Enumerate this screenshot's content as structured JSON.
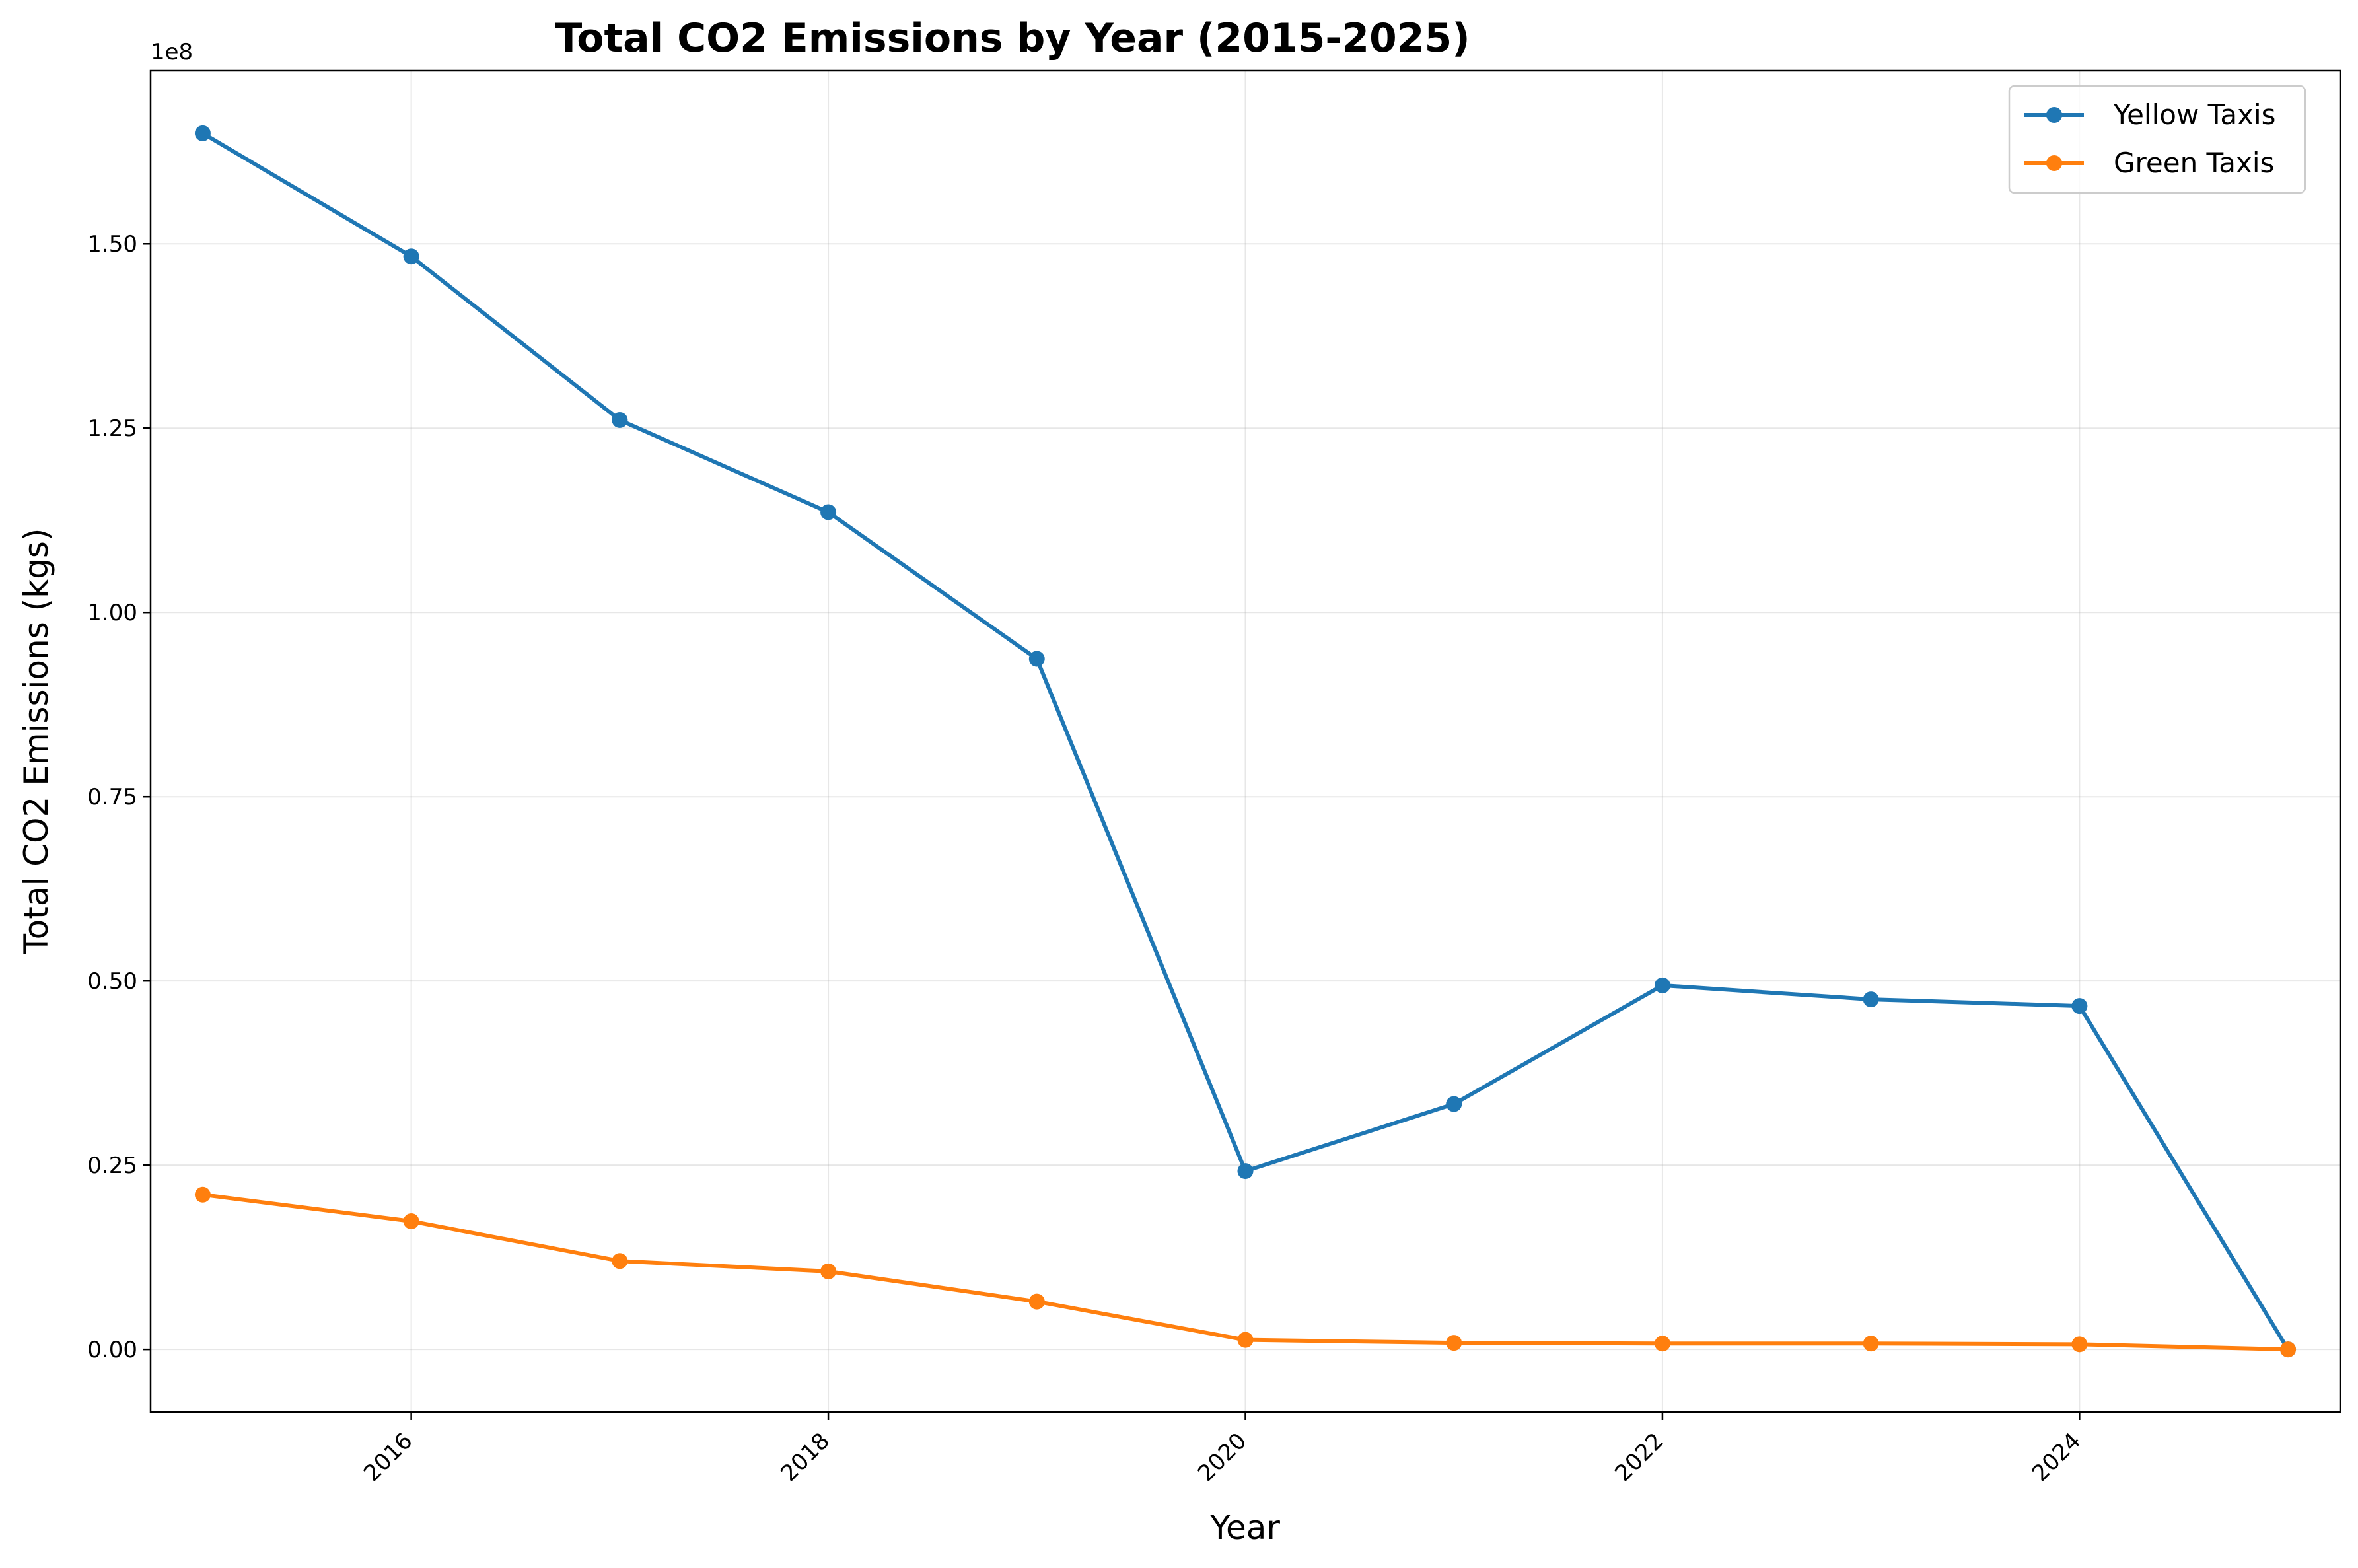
{
  "chart_data": {
    "type": "line",
    "title": "Total CO2 Emissions by Year (2015-2025)",
    "xlabel": "Year",
    "ylabel": "Total CO2 Emissions (kgs)",
    "y_offset_label": "1e8",
    "x": [
      2015,
      2016,
      2017,
      2018,
      2019,
      2020,
      2021,
      2022,
      2023,
      2024,
      2025
    ],
    "xlim": [
      2014.75,
      2025.25
    ],
    "ylim": [
      -8500000,
      173500000
    ],
    "x_ticks": [
      2016,
      2018,
      2020,
      2022,
      2024
    ],
    "x_tick_labels": [
      "2016",
      "2018",
      "2020",
      "2022",
      "2024"
    ],
    "y_ticks": [
      0,
      25000000,
      50000000,
      75000000,
      100000000,
      125000000,
      150000000
    ],
    "y_tick_labels": [
      "0.00",
      "0.25",
      "0.50",
      "0.75",
      "1.00",
      "1.25",
      "1.50"
    ],
    "grid": true,
    "legend_position": "top-right",
    "series": [
      {
        "name": "Yellow Taxis",
        "color": "#1f77b4",
        "values": [
          165000000,
          148300000,
          126100000,
          113600000,
          93700000,
          24200000,
          33300000,
          49400000,
          47500000,
          46600000,
          0
        ]
      },
      {
        "name": "Green Taxis",
        "color": "#ff7f0e",
        "values": [
          21000000,
          17400000,
          12000000,
          10600000,
          6500000,
          1300000,
          900000,
          800000,
          800000,
          700000,
          0
        ]
      }
    ]
  }
}
